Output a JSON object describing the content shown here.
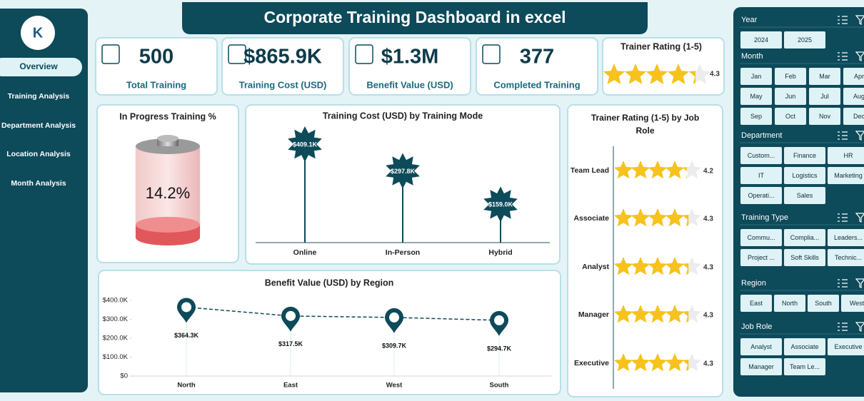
{
  "header": {
    "title": "Corporate Training Dashboard in excel"
  },
  "nav": {
    "items": [
      "Overview",
      "Training Analysis",
      "Department Analysis",
      "Location Analysis",
      "Month Analysis"
    ],
    "active": 0
  },
  "kpis": [
    {
      "value": "500",
      "label": "Total Training"
    },
    {
      "value": "$865.9K",
      "label": "Training Cost (USD)"
    },
    {
      "value": "$1.3M",
      "label": "Benefit Value (USD)"
    },
    {
      "value": "377",
      "label": "Completed Training"
    }
  ],
  "rating_card": {
    "label": "Trainer Rating (1-5)",
    "rating": 4.3
  },
  "chart_data": [
    {
      "type": "battery",
      "title": "In Progress Training %",
      "values": [
        14.2
      ],
      "value_labels": [
        "14.2%"
      ],
      "color": "#e0585c"
    },
    {
      "type": "lollipop",
      "title": "Training Cost (USD) by Training Mode",
      "categories": [
        "Online",
        "In-Person",
        "Hybrid"
      ],
      "values": [
        409.1,
        297.8,
        159.0
      ],
      "value_labels": [
        "$409.1K",
        "$297.8K",
        "$159.0K"
      ],
      "color": "#0d4a5a"
    },
    {
      "type": "line",
      "title": "Benefit Value (USD) by Region",
      "categories": [
        "North",
        "East",
        "West",
        "South"
      ],
      "values": [
        364300,
        317500,
        309700,
        294700
      ],
      "value_labels": [
        "$364.3K",
        "$317.5K",
        "$309.7K",
        "$294.7K"
      ],
      "color": "#0d4a5a",
      "line_style": "dashed",
      "ylim": [
        0,
        400000
      ],
      "yticks": [
        {
          "value": 0,
          "label": "$0"
        },
        {
          "value": 100000,
          "label": "$100.0K"
        },
        {
          "value": 200000,
          "label": "$200.0K"
        },
        {
          "value": 300000,
          "label": "$300.0K"
        },
        {
          "value": 400000,
          "label": "$400.0K"
        }
      ]
    },
    {
      "type": "star_bar",
      "title": "Trainer Rating (1-5) by Job Role",
      "categories": [
        "Team Lead",
        "Associate",
        "Analyst",
        "Manager",
        "Executive"
      ],
      "values": [
        4.2,
        4.3,
        4.3,
        4.3,
        4.3
      ],
      "color": "#f7c21b"
    }
  ],
  "slicers": [
    {
      "title": "Year",
      "items": [
        "2024",
        "2025"
      ]
    },
    {
      "title": "Month",
      "items": [
        "Jan",
        "Feb",
        "Mar",
        "Apr",
        "May",
        "Jun",
        "Jul",
        "Aug",
        "Sep",
        "Oct",
        "Nov",
        "Dec"
      ]
    },
    {
      "title": "Department",
      "items": [
        "Custom...",
        "Finance",
        "HR",
        "IT",
        "Logistics",
        "Marketing",
        "Operati...",
        "Sales"
      ]
    },
    {
      "title": "Training Type",
      "items": [
        "Commu...",
        "Complia...",
        "Leaders...",
        "Project ...",
        "Soft Skills",
        "Technic..."
      ]
    },
    {
      "title": "Region",
      "items": [
        "East",
        "North",
        "South",
        "West"
      ]
    },
    {
      "title": "Job Role",
      "items": [
        "Analyst",
        "Associate",
        "Executive",
        "Manager",
        "Team Le..."
      ]
    }
  ]
}
